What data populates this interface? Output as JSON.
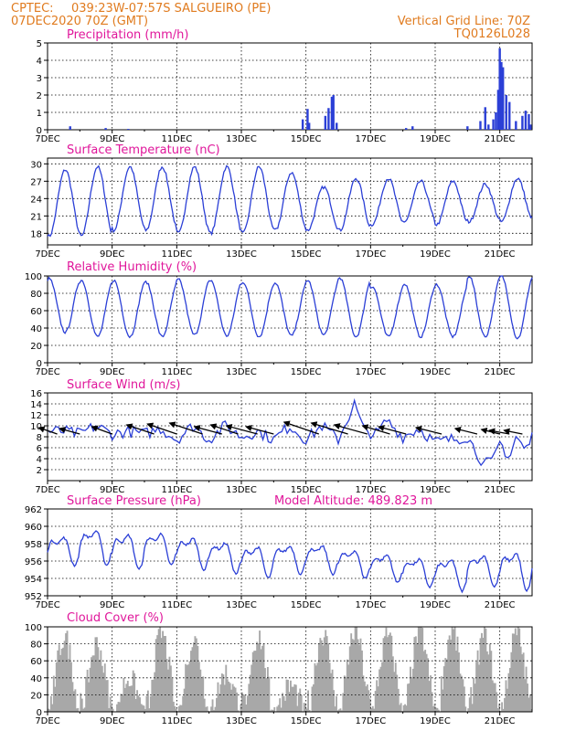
{
  "header": {
    "source": "CPTEC:",
    "location": "039:23W-07:57S  SALGUEIRO (PE)",
    "init_date": "07DEC2020 70Z (GMT)",
    "grid_note": "Vertical Grid Line: 70Z",
    "model_code": "TQ0126L028"
  },
  "colors": {
    "header": "#e07b1f",
    "titles": "#e0179b",
    "series": "#2b3fd6",
    "cloud": "#a8a8a8",
    "arrows": "#000000"
  },
  "chart_data": [
    {
      "id": "precip",
      "type": "bar",
      "title": "Precipitation (mm/h)",
      "x_labels": [
        "7DEC",
        "9DEC",
        "11DEC",
        "13DEC",
        "15DEC",
        "17DEC",
        "19DEC",
        "21DEC"
      ],
      "x_range_days": [
        0,
        15
      ],
      "ylim": [
        0,
        5
      ],
      "yticks": [
        0,
        1,
        2,
        3,
        4,
        5
      ],
      "grid": true,
      "values": [
        [
          0.7,
          0.2
        ],
        [
          1.8,
          0.1
        ],
        [
          2.5,
          0.05
        ],
        [
          7.9,
          0.6
        ],
        [
          8.05,
          1.2
        ],
        [
          8.1,
          0.4
        ],
        [
          8.6,
          0.8
        ],
        [
          8.7,
          1.25
        ],
        [
          8.8,
          1.9
        ],
        [
          8.85,
          2.0
        ],
        [
          8.95,
          0.4
        ],
        [
          11.1,
          0.1
        ],
        [
          11.3,
          0.2
        ],
        [
          13.0,
          0.2
        ],
        [
          13.4,
          0.5
        ],
        [
          13.55,
          1.3
        ],
        [
          13.65,
          0.3
        ],
        [
          13.8,
          0.6
        ],
        [
          13.88,
          1.0
        ],
        [
          13.95,
          2.3
        ],
        [
          14.0,
          4.7
        ],
        [
          14.05,
          3.9
        ],
        [
          14.1,
          3.6
        ],
        [
          14.2,
          2.0
        ],
        [
          14.3,
          1.6
        ],
        [
          14.5,
          0.5
        ],
        [
          14.7,
          0.8
        ],
        [
          14.8,
          1.1
        ],
        [
          14.9,
          0.9
        ],
        [
          14.95,
          0.3
        ]
      ]
    },
    {
      "id": "temp",
      "type": "line",
      "title": "Surface Temperature (nC)",
      "x_labels": [
        "7DEC",
        "9DEC",
        "11DEC",
        "13DEC",
        "15DEC",
        "17DEC",
        "19DEC",
        "21DEC"
      ],
      "x_range_days": [
        0,
        15
      ],
      "ylim": [
        16,
        31
      ],
      "yticks": [
        18,
        21,
        24,
        27,
        30
      ],
      "grid": true,
      "daily_max": [
        29,
        29.5,
        29.5,
        29.5,
        29.5,
        29.5,
        29.5,
        28.5,
        26,
        27.5,
        27.5,
        27,
        27,
        26.5,
        27.5,
        28
      ],
      "daily_min": [
        17.5,
        17.5,
        18.5,
        18.5,
        18,
        18,
        18,
        18.5,
        18.5,
        18.5,
        19.5,
        20,
        19.5,
        20,
        20,
        20.5
      ]
    },
    {
      "id": "rh",
      "type": "line",
      "title": "Relative Humidity (%)",
      "x_labels": [
        "7DEC",
        "9DEC",
        "11DEC",
        "13DEC",
        "15DEC",
        "17DEC",
        "19DEC",
        "21DEC"
      ],
      "x_range_days": [
        0,
        15
      ],
      "ylim": [
        0,
        100
      ],
      "yticks": [
        0,
        20,
        40,
        60,
        80,
        100
      ],
      "grid": true,
      "daily_max": [
        97,
        95,
        95,
        93,
        96,
        95,
        93,
        92,
        95,
        98,
        88,
        91,
        90,
        100,
        100,
        100
      ],
      "daily_min": [
        35,
        30,
        30,
        30,
        32,
        31,
        30,
        31,
        32,
        30,
        30,
        30,
        30,
        30,
        28,
        28
      ]
    },
    {
      "id": "wind",
      "type": "line",
      "title": "Surface Wind (m/s)",
      "x_labels": [
        "7DEC",
        "9DEC",
        "11DEC",
        "13DEC",
        "15DEC",
        "17DEC",
        "19DEC",
        "21DEC"
      ],
      "x_range_days": [
        0,
        15
      ],
      "ylim": [
        0,
        16
      ],
      "yticks": [
        2,
        4,
        6,
        8,
        10,
        12,
        14,
        16
      ],
      "grid": true,
      "speed": [
        [
          0,
          9.0
        ],
        [
          0.5,
          9.0
        ],
        [
          1,
          8.5
        ],
        [
          1.5,
          10
        ],
        [
          2,
          8.5
        ],
        [
          2.5,
          9.0
        ],
        [
          3,
          8.5
        ],
        [
          3.5,
          9.5
        ],
        [
          4,
          7.5
        ],
        [
          4.5,
          10
        ],
        [
          5,
          7.5
        ],
        [
          5.5,
          10
        ],
        [
          6,
          8.0
        ],
        [
          6.5,
          9.0
        ],
        [
          7,
          7.5
        ],
        [
          7.5,
          10
        ],
        [
          8,
          7.5
        ],
        [
          8.5,
          10
        ],
        [
          9,
          7.5
        ],
        [
          9.5,
          14
        ],
        [
          9.8,
          9.0
        ],
        [
          10.2,
          8.5
        ],
        [
          10.5,
          11
        ],
        [
          11,
          8.0
        ],
        [
          11.5,
          9.5
        ],
        [
          12,
          7.0
        ],
        [
          12.5,
          7.5
        ],
        [
          13,
          8.0
        ],
        [
          13.5,
          3.0
        ],
        [
          13.8,
          3.5
        ],
        [
          14,
          7.0
        ],
        [
          14.3,
          4.0
        ],
        [
          14.5,
          8.0
        ],
        [
          14.8,
          5.5
        ],
        [
          15,
          8.0
        ]
      ],
      "arrow_days": [
        0.3,
        1.0,
        2.0,
        3.3,
        4.0,
        4.8,
        5.4,
        5.9,
        6.5,
        7.0,
        8.4,
        9.3,
        9.9,
        10.6,
        11.1,
        12.2,
        13.3,
        14.0,
        14.3,
        14.7
      ],
      "arrow_speeds": [
        8.5,
        8.5,
        8.5,
        8.5,
        8.5,
        8.5,
        8.5,
        8.5,
        8.5,
        8.5,
        8.5,
        8.5,
        8.5,
        8.5,
        8.5,
        8.5,
        8.5,
        8.5,
        8.5,
        8.5
      ],
      "arrow_dx": [
        -20,
        -22,
        -22,
        -30,
        -32,
        -36,
        -30,
        -30,
        -34,
        -30,
        -38,
        -40,
        -36,
        -30,
        -30,
        -28,
        -24,
        -20,
        -22,
        -20
      ],
      "arrow_dy": [
        -7,
        -6,
        -8,
        -10,
        -11,
        -12,
        -8,
        -10,
        -9,
        -8,
        -13,
        -12,
        -10,
        -9,
        -8,
        -7,
        -6,
        -5,
        -4,
        -4
      ]
    },
    {
      "id": "pressure",
      "type": "line",
      "title": "Surface Pressure (hPa)",
      "note": "Model Altitude: 489.823  m",
      "x_labels": [
        "7DEC",
        "9DEC",
        "11DEC",
        "13DEC",
        "15DEC",
        "17DEC",
        "19DEC",
        "21DEC"
      ],
      "x_range_days": [
        0,
        15
      ],
      "ylim": [
        952,
        962
      ],
      "yticks": [
        952,
        954,
        956,
        958,
        960,
        962
      ],
      "grid": true,
      "daily_high": [
        959.5,
        960.5,
        960,
        960,
        959.5,
        959,
        958.5,
        958.5,
        958.5,
        958,
        957.5,
        957,
        957,
        957.5,
        958,
        958
      ],
      "daily_low": [
        955.5,
        955.5,
        955,
        955.5,
        955,
        954.5,
        954,
        954.5,
        954.5,
        954,
        953.5,
        953,
        952.5,
        953,
        952.5,
        953
      ]
    },
    {
      "id": "cloud",
      "type": "area",
      "title": "Cloud Cover (%)",
      "x_labels": [
        "7DEC",
        "9DEC",
        "11DEC",
        "13DEC",
        "15DEC",
        "17DEC",
        "19DEC",
        "21DEC"
      ],
      "x_range_days": [
        0,
        15
      ],
      "ylim": [
        0,
        100
      ],
      "yticks": [
        0,
        20,
        40,
        60,
        80,
        100
      ],
      "grid": true,
      "daily_cover": [
        88,
        80,
        40,
        92,
        85,
        45,
        90,
        30,
        92,
        95,
        88,
        95,
        95,
        90,
        92,
        95
      ]
    }
  ]
}
